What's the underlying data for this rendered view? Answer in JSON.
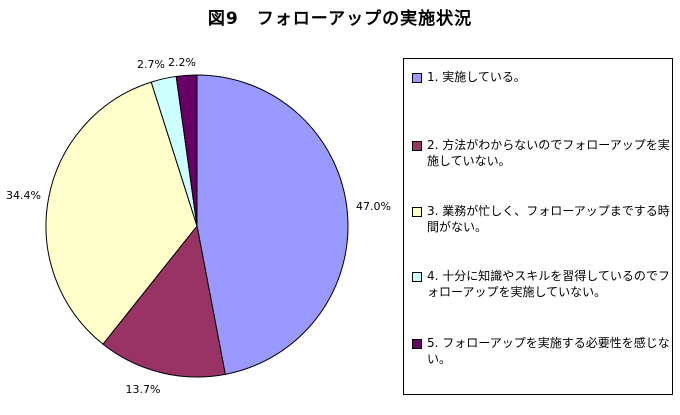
{
  "chart_data": {
    "type": "pie",
    "title": "図9　フォローアップの実施状況",
    "slices": [
      {
        "label": "1. 実施している。",
        "value": 47.0,
        "display": "47.0%",
        "color": "#9999ff"
      },
      {
        "label": "2. 方法がわからないのでフォローアップを実施していない。",
        "value": 13.7,
        "display": "13.7%",
        "color": "#993366"
      },
      {
        "label": "3. 業務が忙しく、フォローアップまでする時間がない。",
        "value": 34.4,
        "display": "34.4%",
        "color": "#ffffcc"
      },
      {
        "label": "4. 十分に知識やスキルを習得しているのでフォローアップを実施していない。",
        "value": 2.7,
        "display": "2.7%",
        "color": "#ccffff"
      },
      {
        "label": "5. フォローアップを実施する必要性を感じない。",
        "value": 2.2,
        "display": "2.2%",
        "color": "#660066"
      }
    ],
    "start": "12 o'clock",
    "direction": "clockwise",
    "legend_position": "right"
  }
}
